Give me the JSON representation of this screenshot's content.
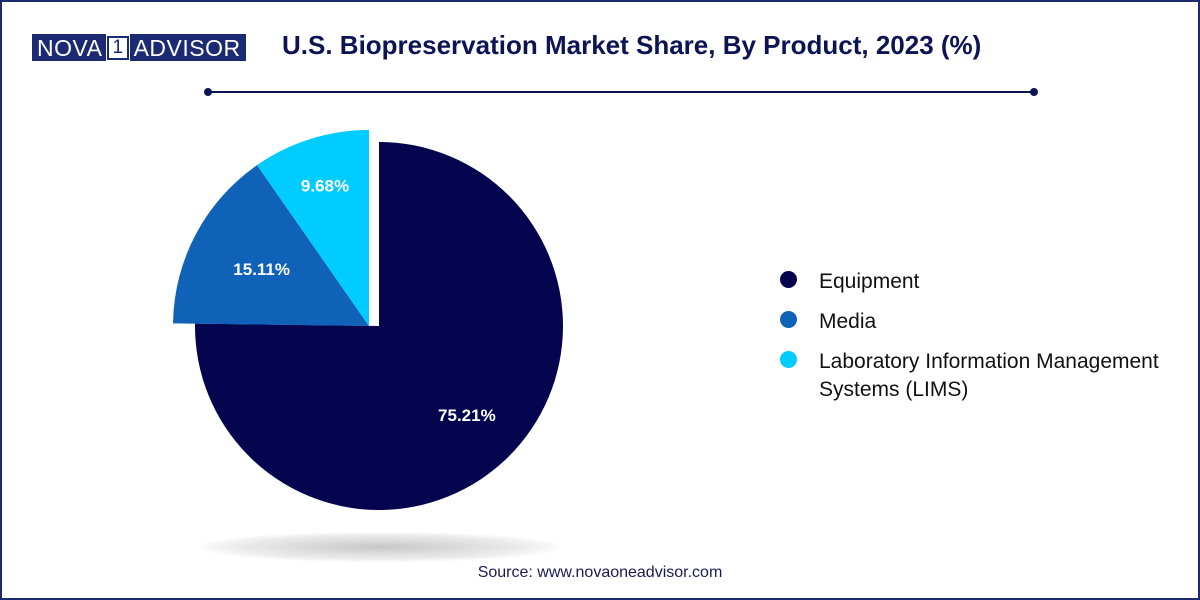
{
  "logo": {
    "nova": "NOVA",
    "one": "1",
    "advisor": "ADVISOR"
  },
  "title": "U.S. Biopreservation Market Share, By Product, 2023 (%)",
  "source": "Source: www.novaoneadvisor.com",
  "chart_data": {
    "type": "pie",
    "title": "U.S. Biopreservation Market Share, By Product, 2023 (%)",
    "categories": [
      "Equipment",
      "Media",
      "Laboratory Information Management Systems (LIMS)"
    ],
    "values": [
      75.21,
      15.11,
      9.68
    ],
    "labels": [
      "75.21%",
      "15.11%",
      "9.68%"
    ],
    "colors": [
      "#04044f",
      "#0f62b8",
      "#00ccff"
    ],
    "exploded": [
      false,
      true,
      true
    ],
    "legend_position": "right"
  }
}
